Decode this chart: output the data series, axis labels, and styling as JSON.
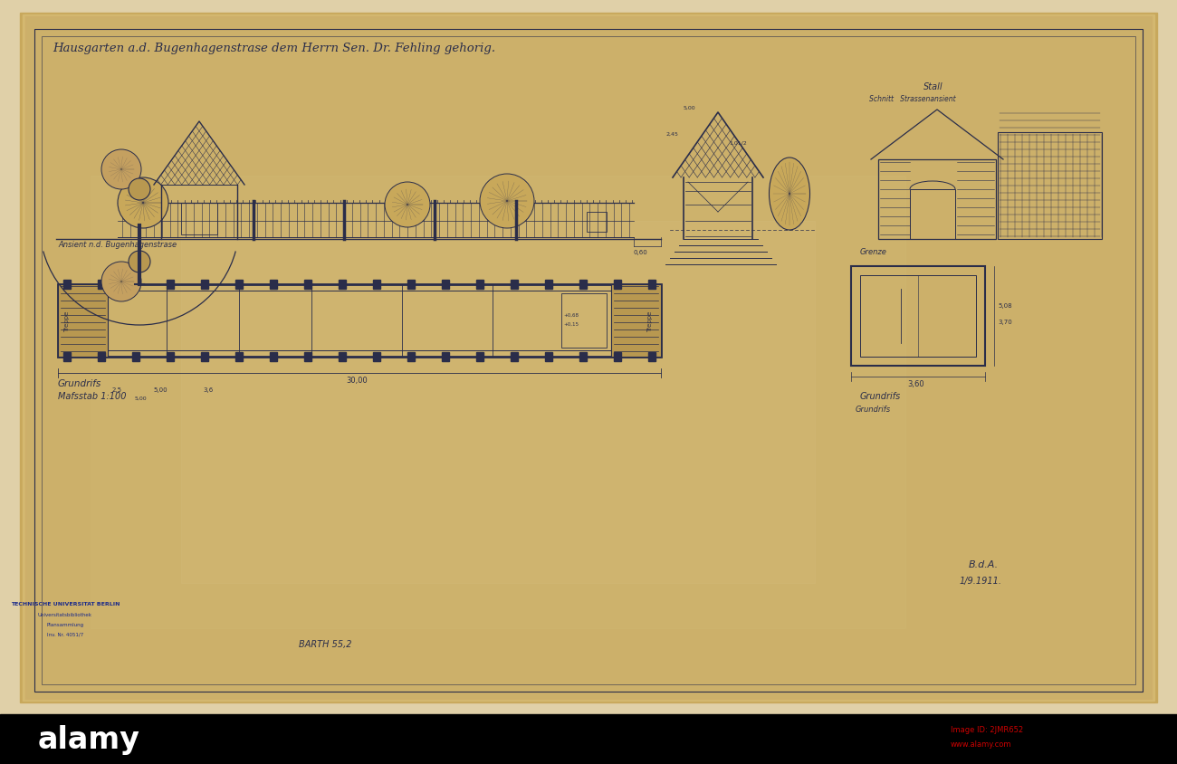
{
  "bg_outer": "#B8A88A",
  "bg_paper": "#C8AC7A",
  "bg_paper2": "#D4B87E",
  "dc": "#2A2D4A",
  "dc_light": "#3A3D5A",
  "alamy_bg": "#000000",
  "white_bg": "#E8D8B0",
  "figsize": [
    13.0,
    8.45
  ],
  "dpi": 100,
  "title_text": "Hausgarten a.d. Bugenhagenstrase dem Herrn Sen. Dr. Fehling gehorig.",
  "subtitle_elev": "Ansient n.d. Bugenhagenstrase",
  "label_grundriss": "Grundrifs",
  "label_masstab": "Mafsstab 1:100",
  "label_grundriss2": "Grundrifs",
  "label_stall": "Stall",
  "label_schnitt": "Schnitt   Strassenansient",
  "stamp_line1": "TECHNISCHE UNIVERSITAT BERLIN",
  "stamp_line2": "Universitatsbibliothek",
  "stamp_line3": "Plansammlung",
  "stamp_line4": "Inv. Nr. 4051/7",
  "barth_text": "BARTH 55,2",
  "alamy_text": "alamy",
  "image_id": "Image ID: 2JMR652",
  "alamy_url": "www.alamy.com"
}
